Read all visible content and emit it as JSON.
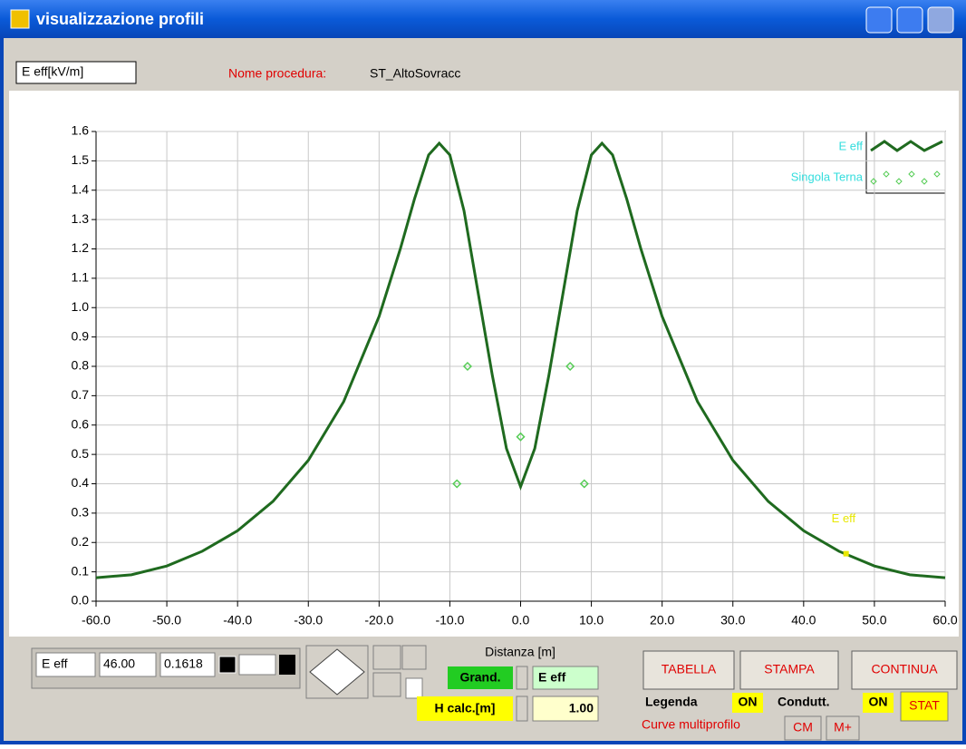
{
  "window": {
    "title": "visualizzazione profili"
  },
  "procedure": {
    "label": "Nome procedura:",
    "name": "ST_AltoSovracc"
  },
  "chart_data": {
    "type": "line",
    "y_label": "E eff[kV/m]",
    "x_label": "Distanza [m]",
    "xlim": [
      -60,
      60
    ],
    "ylim": [
      0,
      1.6
    ],
    "grid": true,
    "xticks": [
      {
        "value": -60,
        "label": "-60.0"
      },
      {
        "value": -50,
        "label": "-50.0"
      },
      {
        "value": -40,
        "label": "-40.0"
      },
      {
        "value": -30,
        "label": "-30.0"
      },
      {
        "value": -20,
        "label": "-20.0"
      },
      {
        "value": -10,
        "label": "-10.0"
      },
      {
        "value": 0,
        "label": "0.0"
      },
      {
        "value": 10,
        "label": "10.0"
      },
      {
        "value": 20,
        "label": "20.0"
      },
      {
        "value": 30,
        "label": "30.0"
      },
      {
        "value": 40,
        "label": "40.0"
      },
      {
        "value": 50,
        "label": "50.0"
      },
      {
        "value": 60,
        "label": "60.0"
      }
    ],
    "yticks": [
      {
        "value": 0,
        "label": "0.0"
      },
      {
        "value": 0.1,
        "label": "0.1"
      },
      {
        "value": 0.2,
        "label": "0.2"
      },
      {
        "value": 0.3,
        "label": "0.3"
      },
      {
        "value": 0.4,
        "label": "0.4"
      },
      {
        "value": 0.5,
        "label": "0.5"
      },
      {
        "value": 0.6,
        "label": "0.6"
      },
      {
        "value": 0.7,
        "label": "0.7"
      },
      {
        "value": 0.8,
        "label": "0.8"
      },
      {
        "value": 0.9,
        "label": "0.9"
      },
      {
        "value": 1,
        "label": "1.0"
      },
      {
        "value": 1.1,
        "label": "1.1"
      },
      {
        "value": 1.2,
        "label": "1.2"
      },
      {
        "value": 1.3,
        "label": "1.3"
      },
      {
        "value": 1.4,
        "label": "1.4"
      },
      {
        "value": 1.5,
        "label": "1.5"
      },
      {
        "value": 1.6,
        "label": "1.6"
      }
    ],
    "series": [
      {
        "name": "E eff",
        "type": "line",
        "color": "#1f6a1f",
        "x": [
          -60,
          -55,
          -50,
          -45,
          -40,
          -35,
          -30,
          -25,
          -20,
          -17,
          -15,
          -13,
          -11.5,
          -10,
          -8,
          -6,
          -4,
          -2,
          0,
          2,
          4,
          6,
          8,
          10,
          11.5,
          13,
          15,
          17,
          20,
          25,
          30,
          35,
          40,
          45,
          50,
          55,
          60
        ],
        "values": [
          0.08,
          0.09,
          0.12,
          0.17,
          0.24,
          0.34,
          0.48,
          0.68,
          0.97,
          1.2,
          1.37,
          1.52,
          1.56,
          1.52,
          1.33,
          1.05,
          0.77,
          0.52,
          0.39,
          0.52,
          0.77,
          1.05,
          1.33,
          1.52,
          1.56,
          1.52,
          1.37,
          1.2,
          0.97,
          0.68,
          0.48,
          0.34,
          0.24,
          0.17,
          0.12,
          0.09,
          0.08
        ]
      },
      {
        "name": "Singola Terna",
        "type": "scatter",
        "color": "#55cc55",
        "x": [
          -9,
          -7.5,
          0,
          7,
          9
        ],
        "values": [
          0.4,
          0.8,
          0.56,
          0.8,
          0.4
        ]
      }
    ],
    "cursor": {
      "name": "E eff",
      "x": {
        "value": 46,
        "label": "46.00"
      },
      "y": 0.1618,
      "color": "#e8e800"
    }
  },
  "controls": {
    "grand_label": "Grand.",
    "grand_value": "E eff",
    "hcalc_label": "H calc.[m]",
    "hcalc_value": {
      "value": 1,
      "label": "1.00"
    },
    "buttons": [
      "TABELLA",
      "STAMPA",
      "CONTINUA"
    ],
    "legenda": "Legenda",
    "legenda_state": "ON",
    "condutt": "Condutt.",
    "condutt_state": "ON",
    "stat": "STAT",
    "multiprofile": "Curve multiprofilo",
    "cm": "CM",
    "mplus": "M+"
  }
}
